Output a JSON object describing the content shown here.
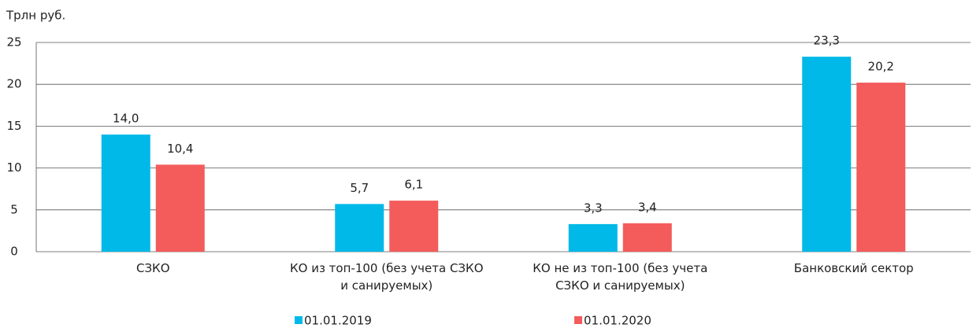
{
  "chart_data": {
    "type": "bar",
    "y_label": "Трлн руб.",
    "categories": [
      "СЗКО",
      "КО из топ-100 (без учета СЗКО и санируемых)",
      "КО не из топ-100 (без учета СЗКО и санируемых)",
      "Банковский сектор"
    ],
    "series": [
      {
        "name": "01.01.2019",
        "color": "#00b9e8",
        "values": [
          14.0,
          5.7,
          3.3,
          23.3
        ],
        "value_labels": [
          "14,0",
          "5,7",
          "3,3",
          "23,3"
        ]
      },
      {
        "name": "01.01.2020",
        "color": "#f45b5b",
        "values": [
          10.4,
          6.1,
          3.4,
          20.2
        ],
        "value_labels": [
          "10,4",
          "6,1",
          "3,4",
          "20,2"
        ]
      }
    ],
    "ylim": [
      0,
      25
    ],
    "yticks": [
      0,
      5,
      10,
      15,
      20,
      25
    ],
    "grid": true
  }
}
